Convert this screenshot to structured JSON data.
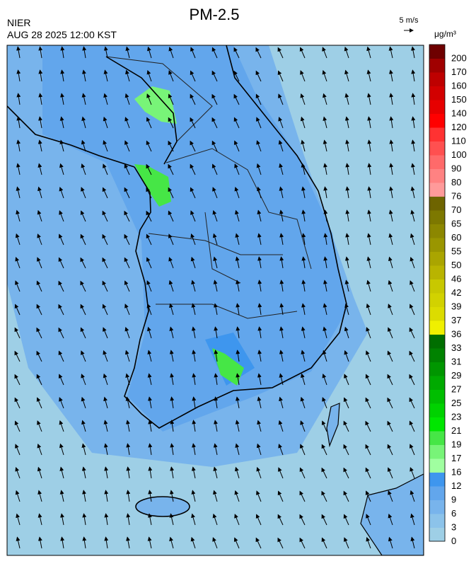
{
  "header": {
    "title": "PM-2.5",
    "source": "NIER",
    "time": "AUG 28 2025 12:00 KST",
    "wind_scale": "5 m/s",
    "unit": "μg/m³"
  },
  "colorbar": {
    "levels": [
      {
        "label": "0",
        "color": "#9ecfe6"
      },
      {
        "label": "3",
        "color": "#8cc3ea"
      },
      {
        "label": "6",
        "color": "#78b4ec"
      },
      {
        "label": "9",
        "color": "#62a6ec"
      },
      {
        "label": "12",
        "color": "#3e96ee"
      },
      {
        "label": "16",
        "color": "#a0ffa0"
      },
      {
        "label": "17",
        "color": "#78f478"
      },
      {
        "label": "19",
        "color": "#46e646"
      },
      {
        "label": "21",
        "color": "#00e600"
      },
      {
        "label": "23",
        "color": "#00d200"
      },
      {
        "label": "25",
        "color": "#00be00"
      },
      {
        "label": "27",
        "color": "#00aa00"
      },
      {
        "label": "29",
        "color": "#009600"
      },
      {
        "label": "31",
        "color": "#008200"
      },
      {
        "label": "33",
        "color": "#006e00"
      },
      {
        "label": "36",
        "color": "#f0f000"
      },
      {
        "label": "37",
        "color": "#dcdc00"
      },
      {
        "label": "39",
        "color": "#d2d200"
      },
      {
        "label": "42",
        "color": "#c8c800"
      },
      {
        "label": "46",
        "color": "#b9b400"
      },
      {
        "label": "50",
        "color": "#aaa500"
      },
      {
        "label": "55",
        "color": "#9a9600"
      },
      {
        "label": "60",
        "color": "#8c8700"
      },
      {
        "label": "65",
        "color": "#7d7800"
      },
      {
        "label": "70",
        "color": "#6e6400"
      },
      {
        "label": "76",
        "color": "#ff9a9a"
      },
      {
        "label": "80",
        "color": "#ff8282"
      },
      {
        "label": "90",
        "color": "#ff6a6a"
      },
      {
        "label": "100",
        "color": "#ff5050"
      },
      {
        "label": "110",
        "color": "#ff3232"
      },
      {
        "label": "120",
        "color": "#ff0000"
      },
      {
        "label": "140",
        "color": "#e60000"
      },
      {
        "label": "150",
        "color": "#d20000"
      },
      {
        "label": "160",
        "color": "#be0000"
      },
      {
        "label": "170",
        "color": "#a00000"
      },
      {
        "label": "200",
        "color": "#6e0000"
      }
    ]
  }
}
